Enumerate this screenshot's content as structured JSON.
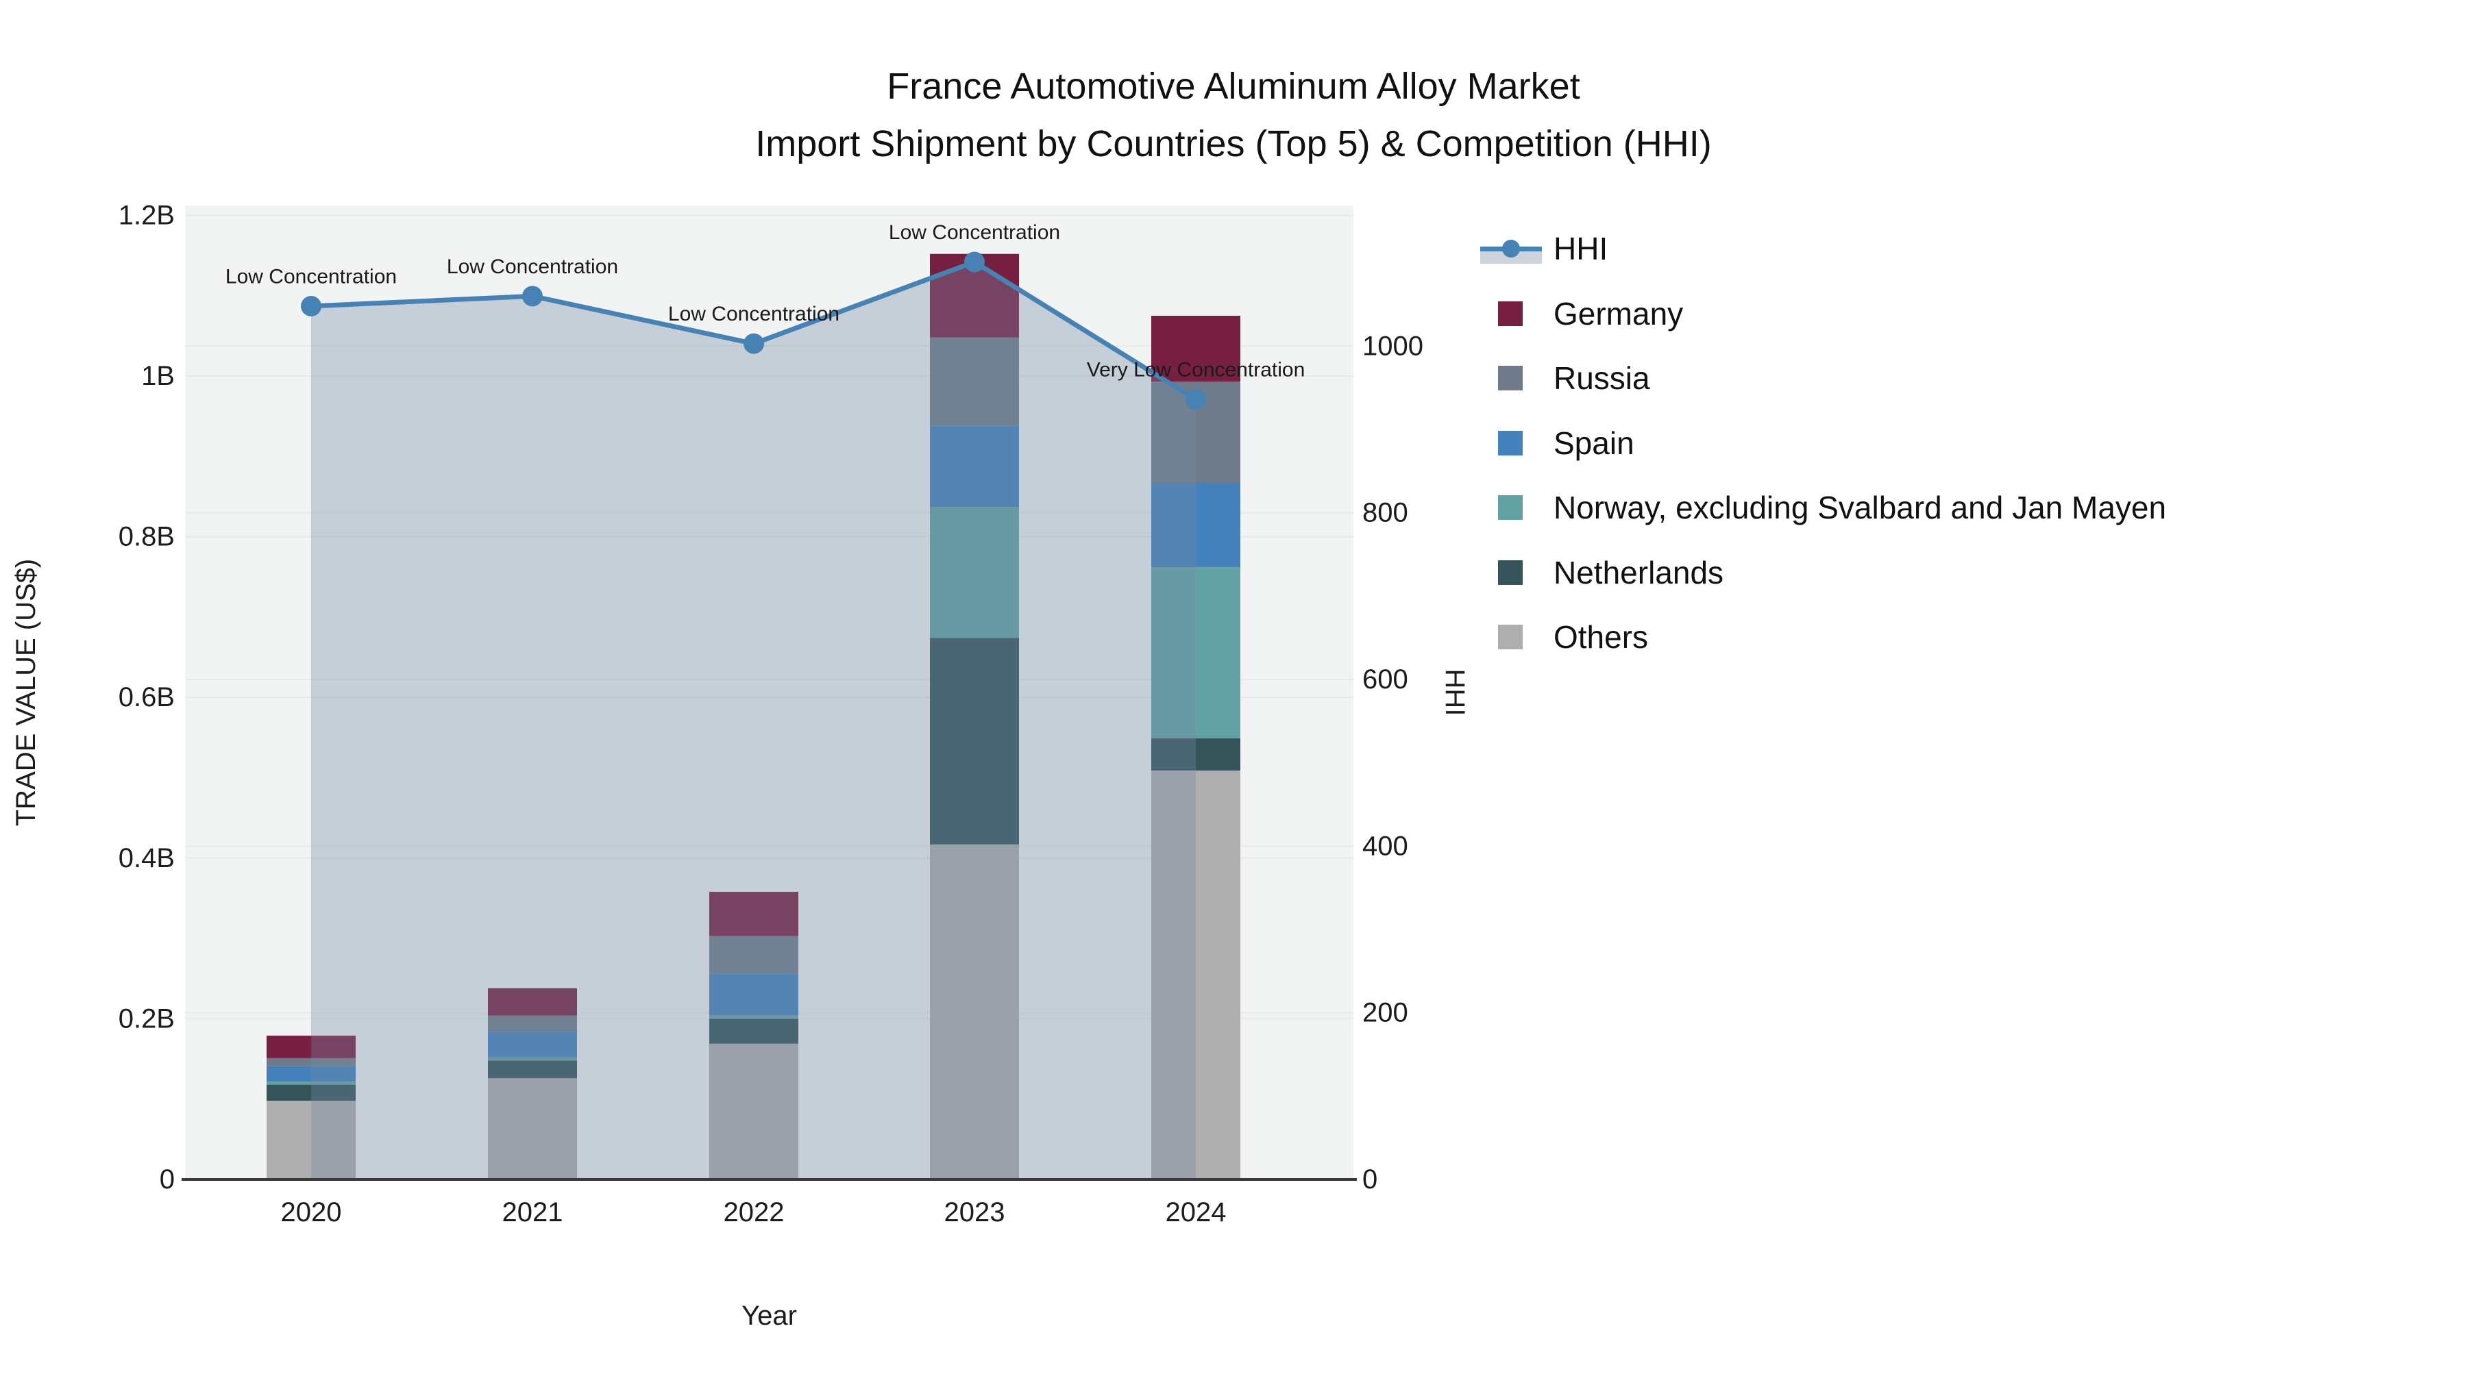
{
  "title": {
    "line1": "France Automotive Aluminum Alloy Market",
    "line2": "Import Shipment by Countries (Top 5) & Competition (HHI)"
  },
  "chart_data": {
    "type": "bar+line",
    "categories": [
      "2020",
      "2021",
      "2022",
      "2023",
      "2024"
    ],
    "xlabel": "Year",
    "y_left": {
      "label": "TRADE VALUE (US$)",
      "unit": "billions USD",
      "ticks": [
        {
          "value": 0.0,
          "text": "0"
        },
        {
          "value": 0.2,
          "text": "0.2B"
        },
        {
          "value": 0.4,
          "text": "0.4B"
        },
        {
          "value": 0.6,
          "text": "0.6B"
        },
        {
          "value": 0.8,
          "text": "0.8B"
        },
        {
          "value": 1.0,
          "text": "1B"
        },
        {
          "value": 1.2,
          "text": "1.2B"
        }
      ],
      "range": [
        0,
        1.212
      ]
    },
    "y_right": {
      "label": "HHI",
      "ticks": [
        {
          "value": 0,
          "text": "0"
        },
        {
          "value": 200,
          "text": "200"
        },
        {
          "value": 400,
          "text": "400"
        },
        {
          "value": 600,
          "text": "600"
        },
        {
          "value": 800,
          "text": "800"
        },
        {
          "value": 1000,
          "text": "1000"
        }
      ],
      "range": [
        0,
        1169
      ]
    },
    "series": [
      {
        "name": "Germany",
        "color": "#771F40",
        "values": [
          0.028,
          0.034,
          0.055,
          0.104,
          0.082
        ]
      },
      {
        "name": "Russia",
        "color": "#6F7B8B",
        "values": [
          0.01,
          0.02,
          0.047,
          0.11,
          0.126
        ]
      },
      {
        "name": "Spain",
        "color": "#4381BC",
        "values": [
          0.019,
          0.032,
          0.052,
          0.101,
          0.105
        ]
      },
      {
        "name": "Norway, excluding Svalbard and Jan Mayen",
        "color": "#63A2A3",
        "values": [
          0.004,
          0.004,
          0.004,
          0.163,
          0.213
        ]
      },
      {
        "name": "Netherlands",
        "color": "#35545A",
        "values": [
          0.02,
          0.022,
          0.031,
          0.257,
          0.04
        ]
      },
      {
        "name": "Others",
        "color": "#AEAEAE",
        "values": [
          0.098,
          0.126,
          0.169,
          0.417,
          0.509
        ]
      }
    ],
    "stack_order_bottom_to_top": [
      "Others",
      "Netherlands",
      "Norway, excluding Svalbard and Jan Mayen",
      "Spain",
      "Russia",
      "Germany"
    ],
    "hhi_line": {
      "name": "HHI",
      "color": "#4682B4",
      "fill_color": "rgba(118,138,162,0.35)",
      "values": [
        1048,
        1060,
        1003,
        1101,
        936
      ]
    },
    "annotations": [
      {
        "category": "2020",
        "text": "Low Concentration"
      },
      {
        "category": "2021",
        "text": "Low Concentration"
      },
      {
        "category": "2022",
        "text": "Low Concentration"
      },
      {
        "category": "2023",
        "text": "Low Concentration"
      },
      {
        "category": "2024",
        "text": "Very Low Concentration"
      }
    ],
    "plot_bg": "#F2F3F3",
    "grid_color": "#E7E8E8",
    "axis_line_color": "#3B3B3B",
    "legend_position": "right"
  },
  "legend": {
    "items": [
      {
        "label": "HHI",
        "type": "line",
        "color": "#4682B4"
      },
      {
        "label": "Germany",
        "type": "swatch",
        "color": "#771F40"
      },
      {
        "label": "Russia",
        "type": "swatch",
        "color": "#6F7B8B"
      },
      {
        "label": "Spain",
        "type": "swatch",
        "color": "#4381BC"
      },
      {
        "label": "Norway, excluding Svalbard and Jan Mayen",
        "type": "swatch",
        "color": "#63A2A3"
      },
      {
        "label": "Netherlands",
        "type": "swatch",
        "color": "#35545A"
      },
      {
        "label": "Others",
        "type": "swatch",
        "color": "#AEAEAE"
      }
    ]
  }
}
